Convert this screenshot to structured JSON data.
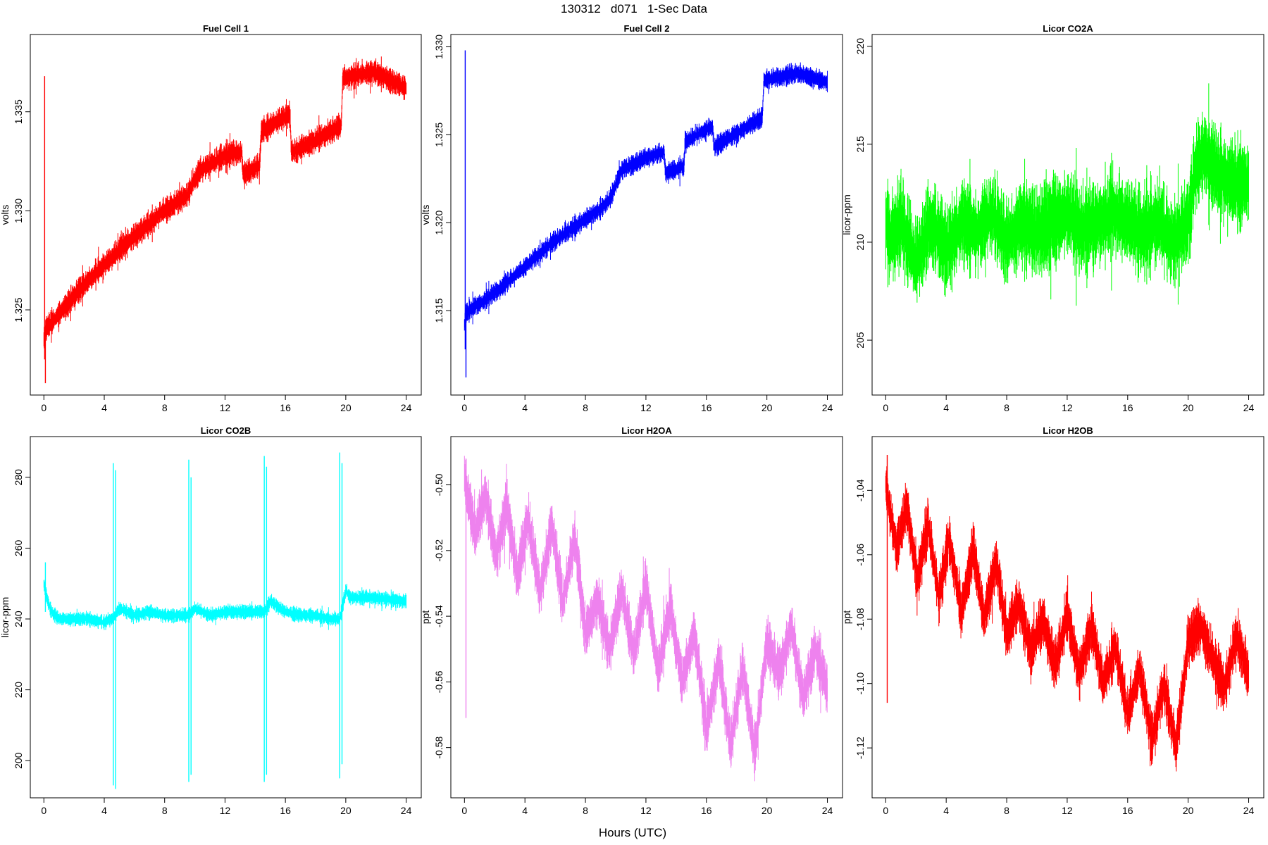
{
  "figure": {
    "title": "130312   d071   1-Sec Data",
    "xlabel": "Hours (UTC)"
  },
  "chart_data": [
    {
      "type": "line",
      "title": "Fuel Cell 1",
      "ylabel": "volts",
      "color": "#ff0000",
      "xlim": [
        -0.9,
        25
      ],
      "ylim": [
        1.3207,
        1.3389
      ],
      "xticks": [
        "0",
        "4",
        "8",
        "12",
        "16",
        "20",
        "24"
      ],
      "yticks": [
        "1.325",
        "1.330",
        "1.335"
      ],
      "noise": 0.0008,
      "x": [
        0,
        0.1,
        2,
        4,
        6,
        8,
        9.5,
        10.3,
        12,
        13.1,
        13.2,
        14.3,
        14.4,
        16.3,
        16.4,
        19.7,
        19.8,
        21.8,
        24
      ],
      "y": [
        1.3235,
        1.324,
        1.3257,
        1.3273,
        1.3287,
        1.33,
        1.3308,
        1.332,
        1.3328,
        1.333,
        1.3318,
        1.3323,
        1.334,
        1.3349,
        1.3329,
        1.3343,
        1.3367,
        1.337,
        1.3362
      ],
      "spikes": [
        {
          "x": 0.05,
          "y0": 1.3225,
          "y1": 1.3368
        },
        {
          "x": 0.1,
          "y0": 1.3213,
          "y1": 1.324
        }
      ]
    },
    {
      "type": "line",
      "title": "Fuel Cell 2",
      "ylabel": "volts",
      "color": "#0000ff",
      "xlim": [
        -0.9,
        25
      ],
      "ylim": [
        1.3102,
        1.3307
      ],
      "xticks": [
        "0",
        "4",
        "8",
        "12",
        "16",
        "20",
        "24"
      ],
      "yticks": [
        "1.315",
        "1.320",
        "1.325",
        "1.330"
      ],
      "noise": 0.0007,
      "x": [
        0,
        0.1,
        2,
        4,
        6,
        8,
        9,
        9.6,
        10.4,
        12,
        13.2,
        13.3,
        14.5,
        14.6,
        16.4,
        16.5,
        19.7,
        19.8,
        22,
        24
      ],
      "y": [
        1.3142,
        1.3149,
        1.316,
        1.3175,
        1.319,
        1.3202,
        1.3208,
        1.3213,
        1.323,
        1.3237,
        1.324,
        1.3228,
        1.3232,
        1.3246,
        1.3255,
        1.3243,
        1.326,
        1.3281,
        1.3285,
        1.328
      ],
      "spikes": [
        {
          "x": 0.05,
          "y0": 1.3128,
          "y1": 1.3298
        },
        {
          "x": 0.1,
          "y0": 1.3112,
          "y1": 1.3145
        }
      ]
    },
    {
      "type": "line",
      "title": "Licor CO2A",
      "ylabel": "licor-ppm",
      "color": "#00ff00",
      "xlim": [
        -0.9,
        25
      ],
      "ylim": [
        202.2,
        220.6
      ],
      "xticks": [
        "0",
        "4",
        "8",
        "12",
        "16",
        "20",
        "24"
      ],
      "yticks": [
        "205",
        "210",
        "215",
        "220"
      ],
      "noise": 2.8,
      "x": [
        0,
        0.3,
        1,
        2,
        3,
        4,
        5,
        6,
        7,
        8,
        9,
        10,
        11,
        12,
        13,
        14,
        15,
        16,
        17,
        18,
        19,
        20,
        20.4,
        21,
        22,
        23,
        24
      ],
      "y": [
        211,
        210,
        211,
        209,
        211,
        209.5,
        211,
        210.5,
        211.5,
        210,
        211,
        210.5,
        211,
        211.5,
        210.5,
        211,
        211.5,
        211,
        210.5,
        211,
        210,
        211,
        213.5,
        214.5,
        213.5,
        213,
        213
      ]
    },
    {
      "type": "line",
      "title": "Licor CO2B",
      "ylabel": "licor-ppm",
      "color": "#00ffff",
      "xlim": [
        -0.9,
        25
      ],
      "ylim": [
        189.5,
        291.5
      ],
      "xticks": [
        "0",
        "4",
        "8",
        "12",
        "16",
        "20",
        "24"
      ],
      "yticks": [
        "200",
        "220",
        "240",
        "260",
        "280"
      ],
      "noise": 2.5,
      "x": [
        0,
        0.2,
        0.5,
        1,
        2,
        3,
        4,
        4.4,
        4.6,
        5,
        6,
        7,
        8,
        9,
        9.4,
        9.6,
        10,
        11,
        12,
        13,
        14,
        14.4,
        14.6,
        15,
        16,
        17,
        18,
        19,
        19.4,
        19.6,
        20,
        20.3,
        22,
        24
      ],
      "y": [
        250,
        246,
        242,
        240,
        240,
        240,
        239,
        240,
        240,
        243,
        241,
        242,
        241,
        241,
        241,
        241,
        243,
        241,
        242,
        242,
        242,
        242,
        242,
        245,
        242,
        241,
        241,
        240,
        240,
        240,
        248,
        246,
        246,
        245
      ],
      "spikes": [
        {
          "x": 4.6,
          "y0": 193,
          "y1": 284
        },
        {
          "x": 4.75,
          "y0": 192,
          "y1": 282
        },
        {
          "x": 9.6,
          "y0": 194,
          "y1": 285
        },
        {
          "x": 9.75,
          "y0": 196,
          "y1": 280
        },
        {
          "x": 14.6,
          "y0": 194,
          "y1": 286
        },
        {
          "x": 14.75,
          "y0": 196,
          "y1": 283
        },
        {
          "x": 19.6,
          "y0": 195,
          "y1": 287
        },
        {
          "x": 19.75,
          "y0": 199,
          "y1": 284
        },
        {
          "x": 0.1,
          "y0": 242,
          "y1": 256
        }
      ]
    },
    {
      "type": "line",
      "title": "Licor H2OA",
      "ylabel": "ppt",
      "color": "#ee82ee",
      "xlim": [
        -0.9,
        25
      ],
      "ylim": [
        -0.5953,
        -0.4853
      ],
      "xticks": [
        "0",
        "4",
        "8",
        "12",
        "16",
        "20",
        "24"
      ],
      "yticks": [
        "-0.50",
        "-0.52",
        "-0.54",
        "-0.56",
        "-0.58"
      ],
      "noise": 0.01,
      "x": [
        0,
        0.7,
        1.4,
        2.1,
        2.8,
        3.5,
        4.2,
        5,
        5.8,
        6.5,
        7.3,
        8,
        8.8,
        9.6,
        10.4,
        11.2,
        12,
        12.8,
        13.6,
        14.4,
        15.2,
        16,
        16.8,
        17.6,
        18.4,
        19.2,
        20,
        20.8,
        21.6,
        22.4,
        23.2,
        24
      ],
      "y": [
        -0.498,
        -0.515,
        -0.503,
        -0.522,
        -0.506,
        -0.528,
        -0.51,
        -0.533,
        -0.512,
        -0.536,
        -0.516,
        -0.545,
        -0.535,
        -0.55,
        -0.532,
        -0.552,
        -0.53,
        -0.557,
        -0.537,
        -0.56,
        -0.545,
        -0.575,
        -0.553,
        -0.58,
        -0.555,
        -0.582,
        -0.548,
        -0.558,
        -0.543,
        -0.565,
        -0.55,
        -0.562
      ],
      "spikes": [
        {
          "x": 0.1,
          "y0": -0.571,
          "y1": -0.492
        }
      ]
    },
    {
      "type": "line",
      "title": "Licor H2OB",
      "ylabel": "ppt",
      "color": "#ff0000",
      "xlim": [
        -0.9,
        25
      ],
      "ylim": [
        -1.1355,
        -1.0233
      ],
      "xticks": [
        "0",
        "4",
        "8",
        "12",
        "16",
        "20",
        "24"
      ],
      "yticks": [
        "-1.04",
        "-1.06",
        "-1.08",
        "-1.10",
        "-1.12"
      ],
      "noise": 0.01,
      "x": [
        0,
        0.7,
        1.4,
        2.1,
        2.8,
        3.5,
        4.2,
        5,
        5.8,
        6.5,
        7.3,
        8,
        8.8,
        9.6,
        10.4,
        11.2,
        12,
        12.8,
        13.6,
        14.4,
        15.2,
        16,
        16.8,
        17.6,
        18.4,
        19.2,
        20,
        20.8,
        21.6,
        22.4,
        23.2,
        24
      ],
      "y": [
        -1.038,
        -1.058,
        -1.045,
        -1.068,
        -1.05,
        -1.073,
        -1.055,
        -1.078,
        -1.058,
        -1.08,
        -1.062,
        -1.085,
        -1.075,
        -1.09,
        -1.08,
        -1.095,
        -1.078,
        -1.097,
        -1.082,
        -1.1,
        -1.088,
        -1.11,
        -1.095,
        -1.118,
        -1.1,
        -1.12,
        -1.087,
        -1.082,
        -1.092,
        -1.102,
        -1.085,
        -1.098
      ],
      "spikes": [
        {
          "x": 0.1,
          "y0": -1.106,
          "y1": -1.029
        }
      ]
    }
  ]
}
